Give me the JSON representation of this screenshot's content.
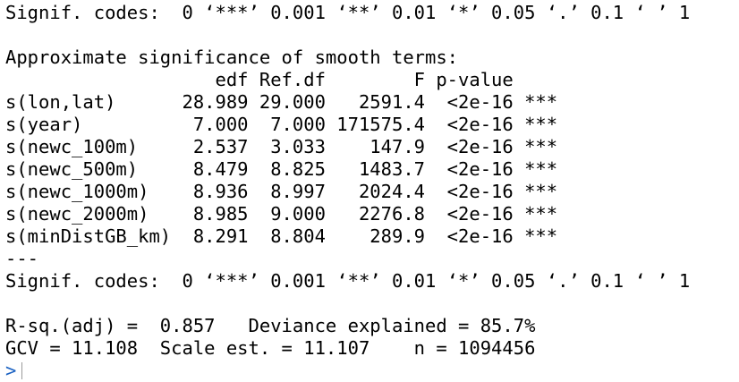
{
  "console": {
    "lines": [
      "Signif. codes:  0 ‘***’ 0.001 ‘**’ 0.01 ‘*’ 0.05 ‘.’ 0.1 ‘ ’ 1",
      "",
      "Approximate significance of smooth terms:",
      "                   edf Ref.df        F p-value    ",
      "s(lon,lat)      28.989 29.000   2591.4  <2e-16 ***",
      "s(year)          7.000  7.000 171575.4  <2e-16 ***",
      "s(newc_100m)     2.537  3.033    147.9  <2e-16 ***",
      "s(newc_500m)     8.479  8.825   1483.7  <2e-16 ***",
      "s(newc_1000m)    8.936  8.997   2024.4  <2e-16 ***",
      "s(newc_2000m)    8.985  9.000   2276.8  <2e-16 ***",
      "s(minDistGB_km)  8.291  8.804    289.9  <2e-16 ***",
      "---",
      "Signif. codes:  0 ‘***’ 0.001 ‘**’ 0.01 ‘*’ 0.05 ‘.’ 0.1 ‘ ’ 1",
      "",
      "R-sq.(adj) =  0.857   Deviance explained = 85.7%",
      "GCV = 11.108  Scale est. = 11.107    n = 1094456"
    ],
    "prompt": ">"
  },
  "colors": {
    "text": "#000000",
    "prompt": "#1a61c2",
    "background": "#ffffff",
    "cursor": "#9a9a9a"
  }
}
